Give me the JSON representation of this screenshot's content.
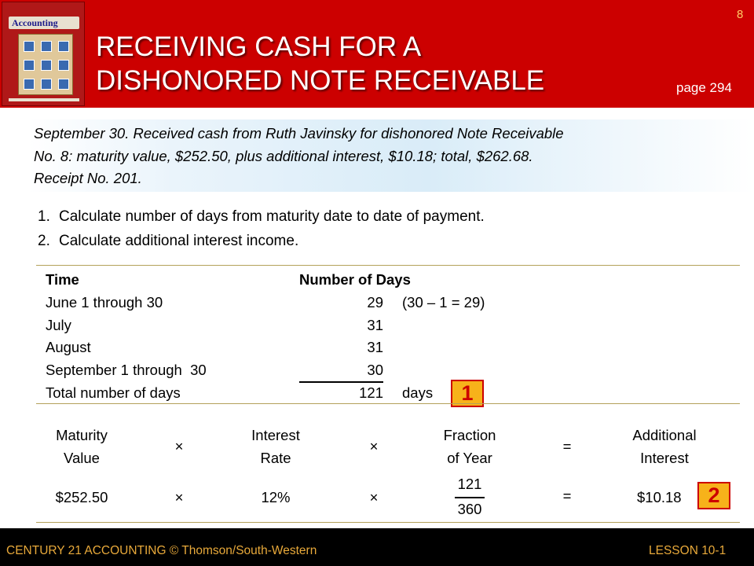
{
  "header": {
    "slide_number": "8",
    "title_line1": "RECEIVING CASH FOR A",
    "title_line2": "DISHONORED NOTE RECEIVABLE",
    "page_ref": "page 294",
    "book_logo_text": "Accounting"
  },
  "intro": {
    "line1": "September 30. Received cash from Ruth Javinsky for dishonored Note Receivable",
    "line2": "No. 8: maturity value, $252.50, plus additional interest, $10.18; total, $262.68.",
    "line3": "Receipt No. 201."
  },
  "steps": [
    {
      "num": "1.",
      "text": "Calculate number of days from maturity date to date of payment."
    },
    {
      "num": "2.",
      "text": "Calculate additional interest income."
    }
  ],
  "days_table": {
    "header_time": "Time",
    "header_days": "Number of Days",
    "rows": [
      {
        "label": "June 1 through 30",
        "days": "29",
        "note": "(30 – 1 = 29)"
      },
      {
        "label": "July",
        "days": "31",
        "note": ""
      },
      {
        "label": "August",
        "days": "31",
        "note": ""
      },
      {
        "label": "September 1 through  30",
        "days": "30",
        "note": ""
      }
    ],
    "total_label": "Total number of days",
    "total_days": "121",
    "total_unit": "days"
  },
  "interest_calc": {
    "h_maturity_1": "Maturity",
    "h_maturity_2": "Value",
    "h_rate_1": "Interest",
    "h_rate_2": "Rate",
    "h_fraction_1": "Fraction",
    "h_fraction_2": "of Year",
    "h_result_1": "Additional",
    "h_result_2": "Interest",
    "times": "×",
    "equals": "=",
    "maturity_value": "$252.50",
    "rate": "12%",
    "fraction_numerator": "121",
    "fraction_denominator": "360",
    "result": "$10.18"
  },
  "markers": {
    "m1": "1",
    "m2": "2"
  },
  "footer": {
    "left": "CENTURY 21 ACCOUNTING © Thomson/South-Western",
    "right": "LESSON 10-1"
  },
  "colors": {
    "header_red": "#cc0000",
    "marker_orange": "#f7b21a",
    "footer_text": "#e8a93a"
  }
}
